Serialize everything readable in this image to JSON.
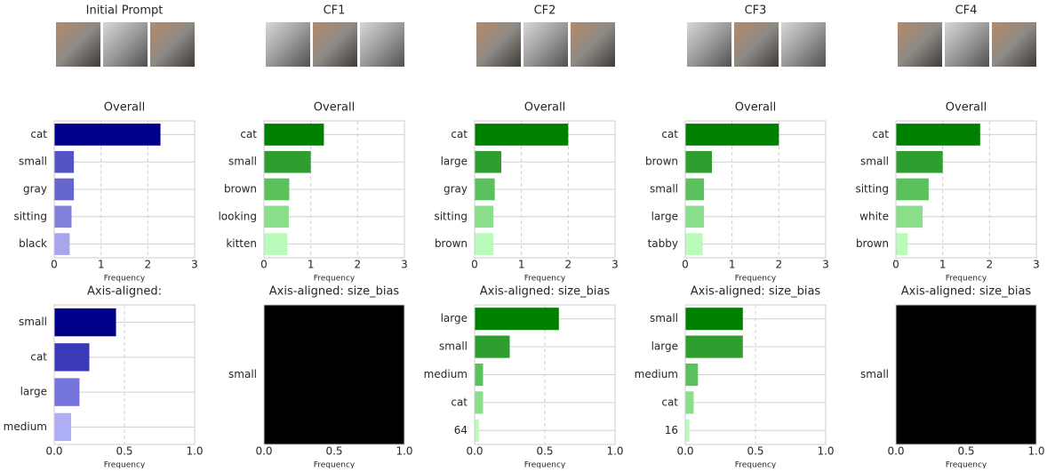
{
  "column_titles": [
    "Initial Prompt",
    "CF1",
    "CF2",
    "CF3",
    "CF4"
  ],
  "chart_data": [
    {
      "type": "barh",
      "title": "Overall",
      "categories": [
        "cat",
        "small",
        "gray",
        "sitting",
        "black"
      ],
      "values": [
        2.27,
        0.42,
        0.42,
        0.37,
        0.33
      ],
      "colors": [
        "#00008b",
        "#5454c4",
        "#6666cc",
        "#8080d8",
        "#a6a6ec"
      ],
      "xlim": [
        0,
        3
      ],
      "xticks": [
        0,
        1,
        2,
        3
      ],
      "xlabel": "Frequency",
      "grid": true
    },
    {
      "type": "barh",
      "title": "Axis-aligned:",
      "categories": [
        "small",
        "cat",
        "large",
        "medium"
      ],
      "values": [
        0.44,
        0.25,
        0.18,
        0.12
      ],
      "colors": [
        "#00008b",
        "#3a3ab8",
        "#7474dc",
        "#b0b0f6"
      ],
      "xlim": [
        0,
        1
      ],
      "xticks": [
        {
          "value": 0,
          "label": "0.0"
        },
        0.5,
        {
          "value": 1,
          "label": "1.0"
        }
      ],
      "xlabel": "Frequency",
      "grid": true
    },
    {
      "type": "barh",
      "title": "Overall",
      "categories": [
        "cat",
        "small",
        "brown",
        "looking",
        "kitten"
      ],
      "values": [
        1.28,
        1.0,
        0.54,
        0.53,
        0.5
      ],
      "colors": [
        "#008000",
        "#2e9e2e",
        "#5cc05c",
        "#8ade8a",
        "#bafaba"
      ],
      "xlim": [
        0,
        3
      ],
      "xticks": [
        0,
        1,
        2,
        3
      ],
      "xlabel": "Frequency",
      "grid": true
    },
    {
      "type": "barh",
      "title": "Axis-aligned: size_bias",
      "categories": [
        "small"
      ],
      "values": [
        1
      ],
      "colors": [
        "#000000"
      ],
      "xlim": [
        0,
        1
      ],
      "xticks": [
        {
          "value": 0,
          "label": "0.0"
        },
        0.5,
        {
          "value": 1,
          "label": "1.0"
        }
      ],
      "xlabel": "Frequency",
      "grid": true
    },
    {
      "type": "barh",
      "title": "Overall",
      "categories": [
        "cat",
        "large",
        "gray",
        "sitting",
        "brown"
      ],
      "values": [
        2.0,
        0.57,
        0.43,
        0.4,
        0.4
      ],
      "colors": [
        "#008000",
        "#2e9e2e",
        "#5cc05c",
        "#8ade8a",
        "#bafaba"
      ],
      "xlim": [
        0,
        3
      ],
      "xticks": [
        0,
        1,
        2,
        3
      ],
      "xlabel": "Frequency",
      "grid": true
    },
    {
      "type": "barh",
      "title": "Axis-aligned: size_bias",
      "categories": [
        "large",
        "small",
        "medium",
        "cat",
        "64"
      ],
      "values": [
        0.6,
        0.25,
        0.06,
        0.06,
        0.03
      ],
      "colors": [
        "#008000",
        "#2e9e2e",
        "#5cc05c",
        "#8ade8a",
        "#bafaba"
      ],
      "xlim": [
        0,
        1
      ],
      "xticks": [
        {
          "value": 0,
          "label": "0.0"
        },
        0.5,
        {
          "value": 1,
          "label": "1.0"
        }
      ],
      "xlabel": "Frequency",
      "grid": true
    },
    {
      "type": "barh",
      "title": "Overall",
      "categories": [
        "cat",
        "brown",
        "small",
        "large",
        "tabby"
      ],
      "values": [
        2.0,
        0.57,
        0.4,
        0.4,
        0.37
      ],
      "colors": [
        "#008000",
        "#2e9e2e",
        "#5cc05c",
        "#8ade8a",
        "#bafaba"
      ],
      "xlim": [
        0,
        3
      ],
      "xticks": [
        0,
        1,
        2,
        3
      ],
      "xlabel": "Frequency",
      "grid": true
    },
    {
      "type": "barh",
      "title": "Axis-aligned: size_bias",
      "categories": [
        "small",
        "large",
        "medium",
        "cat",
        "16"
      ],
      "values": [
        0.41,
        0.41,
        0.09,
        0.06,
        0.03
      ],
      "colors": [
        "#008000",
        "#2e9e2e",
        "#5cc05c",
        "#8ade8a",
        "#bafaba"
      ],
      "xlim": [
        0,
        1
      ],
      "xticks": [
        {
          "value": 0,
          "label": "0.0"
        },
        0.5,
        {
          "value": 1,
          "label": "1.0"
        }
      ],
      "xlabel": "Frequency",
      "grid": true
    },
    {
      "type": "barh",
      "title": "Overall",
      "categories": [
        "cat",
        "small",
        "sitting",
        "white",
        "brown"
      ],
      "values": [
        1.8,
        1.0,
        0.7,
        0.57,
        0.25
      ],
      "colors": [
        "#008000",
        "#2e9e2e",
        "#5cc05c",
        "#8ade8a",
        "#bafaba"
      ],
      "xlim": [
        0,
        3
      ],
      "xticks": [
        0,
        1,
        2,
        3
      ],
      "xlabel": "Frequency",
      "grid": true
    },
    {
      "type": "barh",
      "title": "Axis-aligned: size_bias",
      "categories": [
        "small"
      ],
      "values": [
        1
      ],
      "colors": [
        "#000000"
      ],
      "xlim": [
        0,
        1
      ],
      "xticks": [
        {
          "value": 0,
          "label": "0.0"
        },
        0.5,
        {
          "value": 1,
          "label": "1.0"
        }
      ],
      "xlabel": "Frequency",
      "grid": true
    }
  ]
}
